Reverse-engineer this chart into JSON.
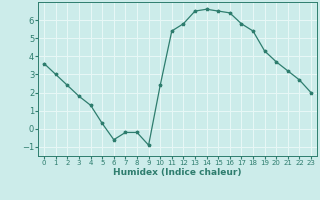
{
  "xlabel": "Humidex (Indice chaleur)",
  "x_values": [
    0,
    1,
    2,
    3,
    4,
    5,
    6,
    7,
    8,
    9,
    10,
    11,
    12,
    13,
    14,
    15,
    16,
    17,
    18,
    19,
    20,
    21,
    22,
    23
  ],
  "y_values": [
    3.6,
    3.0,
    2.4,
    1.8,
    1.3,
    0.3,
    -0.6,
    -0.2,
    -0.2,
    -0.9,
    2.4,
    5.4,
    5.8,
    6.5,
    6.6,
    6.5,
    6.4,
    5.8,
    5.4,
    4.3,
    3.7,
    3.2,
    2.7,
    2.0
  ],
  "line_color": "#2e7d6e",
  "marker": "*",
  "marker_size": 2.5,
  "bg_color": "#ccecea",
  "grid_color": "#e8f8f7",
  "tick_label_color": "#2e7d6e",
  "axis_color": "#2e7d6e",
  "xlim": [
    -0.5,
    23.5
  ],
  "ylim": [
    -1.5,
    7.0
  ],
  "yticks": [
    -1,
    0,
    1,
    2,
    3,
    4,
    5,
    6
  ],
  "xticks": [
    0,
    1,
    2,
    3,
    4,
    5,
    6,
    7,
    8,
    9,
    10,
    11,
    12,
    13,
    14,
    15,
    16,
    17,
    18,
    19,
    20,
    21,
    22,
    23
  ],
  "xlabel_fontsize": 6.5,
  "tick_fontsize_x": 5.0,
  "tick_fontsize_y": 6.0
}
